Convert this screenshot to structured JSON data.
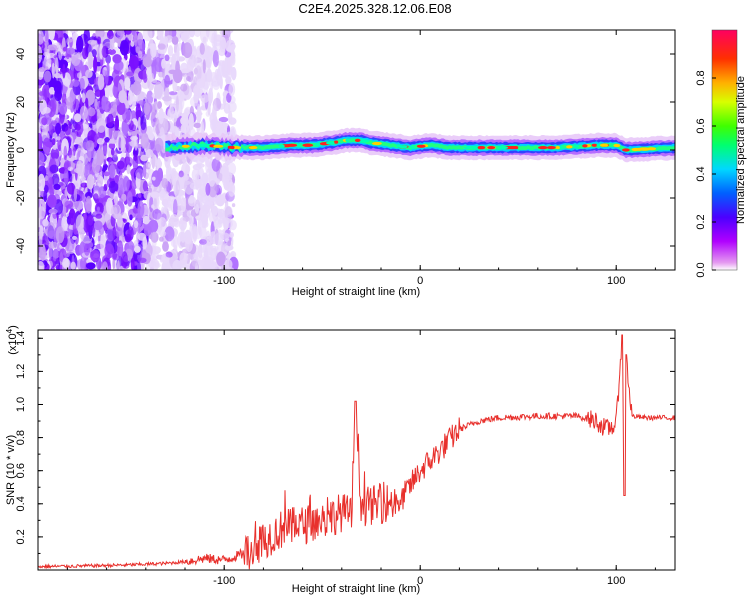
{
  "title": "C2E4.2025.328.12.06.E08",
  "chart_data": [
    {
      "type": "heatmap",
      "name": "spectrogram",
      "xlabel": "Height of straight line (km)",
      "ylabel": "Frequency (Hz)",
      "xlim": [
        -195,
        130
      ],
      "ylim": [
        -50,
        50
      ],
      "xticks": [
        -100,
        0,
        100
      ],
      "xtick_labels": [
        "-100",
        "0",
        "100"
      ],
      "yticks": [
        -40,
        -20,
        0,
        20,
        40
      ],
      "ytick_labels": [
        "-40",
        "-20",
        "0",
        "20",
        "40"
      ],
      "noise_region_km": [
        -195,
        -95
      ],
      "signal_start_km": -130,
      "ridge": {
        "x": [
          -130,
          -110,
          -95,
          -80,
          -65,
          -55,
          -45,
          -38,
          -30,
          -25,
          -15,
          -5,
          5,
          15,
          30,
          50,
          70,
          90,
          100,
          105,
          130
        ],
        "freq": [
          1,
          2,
          1,
          1,
          2,
          2,
          3,
          4,
          4,
          3,
          2,
          1,
          2,
          1,
          1,
          1,
          1,
          2,
          2,
          0,
          1
        ]
      },
      "colorbar": {
        "label": "Normalized spectral amplitude",
        "range": [
          0,
          1
        ],
        "ticks": [
          0.0,
          0.2,
          0.4,
          0.6,
          0.8
        ],
        "tick_labels": [
          "0.0",
          "0.2",
          "0.4",
          "0.6",
          "0.8"
        ]
      }
    },
    {
      "type": "line",
      "name": "snr",
      "xlabel": "Height of straight line (km)",
      "ylabel": "SNR (10 * v/v)",
      "yscale_label": "(x10",
      "yscale_exp": "4",
      "yscale_close": ")",
      "xlim": [
        -195,
        130
      ],
      "ylim": [
        0,
        1.45
      ],
      "xticks": [
        -100,
        0,
        100
      ],
      "xtick_labels": [
        "-100",
        "0",
        "100"
      ],
      "yticks": [
        0.2,
        0.4,
        0.6,
        0.8,
        1.0,
        1.2,
        1.4
      ],
      "ytick_labels": [
        "0.2",
        "0.4",
        "0.6",
        "0.8",
        "1.0",
        "1.2",
        "1.4"
      ],
      "color": "#e8302c",
      "series": {
        "x": [
          -195,
          -170,
          -150,
          -130,
          -120,
          -110,
          -100,
          -90,
          -80,
          -70,
          -60,
          -50,
          -40,
          -35,
          -33,
          -30,
          -20,
          -10,
          0,
          10,
          20,
          30,
          40,
          60,
          80,
          90,
          95,
          100,
          103,
          104,
          105,
          108,
          115,
          130
        ],
        "y": [
          0.02,
          0.025,
          0.03,
          0.04,
          0.05,
          0.07,
          0.06,
          0.1,
          0.18,
          0.25,
          0.27,
          0.3,
          0.35,
          0.33,
          1.02,
          0.38,
          0.4,
          0.42,
          0.6,
          0.72,
          0.85,
          0.9,
          0.92,
          0.93,
          0.93,
          0.9,
          0.85,
          0.88,
          1.42,
          0.45,
          1.3,
          0.93,
          0.92,
          0.92
        ]
      }
    }
  ]
}
